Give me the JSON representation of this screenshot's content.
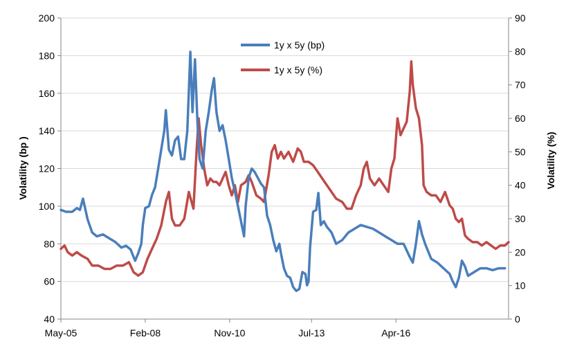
{
  "chart_data": {
    "type": "line",
    "legend_position": "top-center",
    "grid": "horizontal",
    "x_ticks": [
      "May-05",
      "Feb-08",
      "Nov-10",
      "Jul-13",
      "Apr-16"
    ],
    "x_range": [
      2005.33,
      2019.92
    ],
    "x_tick_positions": [
      2005.33,
      2008.08,
      2010.83,
      2013.5,
      2016.25
    ],
    "y_left": {
      "label": "Volatility  (bp )",
      "min": 40,
      "max": 200,
      "ticks": [
        40,
        60,
        80,
        100,
        120,
        140,
        160,
        180,
        200
      ]
    },
    "y_right": {
      "label": "Volatility  (%)",
      "min": 0,
      "max": 90,
      "ticks": [
        0,
        10,
        20,
        30,
        40,
        50,
        60,
        70,
        80,
        90
      ]
    },
    "series": [
      {
        "name": "1y x 5y (bp)",
        "color": "#4a7ebb",
        "axis": "left",
        "points": [
          [
            2005.33,
            98
          ],
          [
            2005.5,
            97
          ],
          [
            2005.7,
            97
          ],
          [
            2005.85,
            99
          ],
          [
            2005.95,
            98
          ],
          [
            2006.05,
            104
          ],
          [
            2006.2,
            93
          ],
          [
            2006.35,
            86
          ],
          [
            2006.5,
            84
          ],
          [
            2006.7,
            85
          ],
          [
            2006.9,
            83
          ],
          [
            2007.1,
            81
          ],
          [
            2007.3,
            78
          ],
          [
            2007.45,
            79
          ],
          [
            2007.6,
            77
          ],
          [
            2007.75,
            71
          ],
          [
            2007.85,
            75
          ],
          [
            2007.95,
            80
          ],
          [
            2008.0,
            90
          ],
          [
            2008.08,
            99
          ],
          [
            2008.2,
            100
          ],
          [
            2008.3,
            106
          ],
          [
            2008.4,
            110
          ],
          [
            2008.5,
            120
          ],
          [
            2008.6,
            130
          ],
          [
            2008.7,
            140
          ],
          [
            2008.75,
            151
          ],
          [
            2008.85,
            130
          ],
          [
            2008.95,
            127
          ],
          [
            2009.05,
            135
          ],
          [
            2009.15,
            137
          ],
          [
            2009.25,
            125
          ],
          [
            2009.35,
            125
          ],
          [
            2009.45,
            140
          ],
          [
            2009.55,
            182
          ],
          [
            2009.62,
            150
          ],
          [
            2009.7,
            178
          ],
          [
            2009.78,
            145
          ],
          [
            2009.85,
            125
          ],
          [
            2009.95,
            120
          ],
          [
            2010.05,
            140
          ],
          [
            2010.15,
            150
          ],
          [
            2010.25,
            162
          ],
          [
            2010.32,
            168
          ],
          [
            2010.4,
            150
          ],
          [
            2010.5,
            140
          ],
          [
            2010.6,
            143
          ],
          [
            2010.7,
            135
          ],
          [
            2010.8,
            125
          ],
          [
            2010.9,
            115
          ],
          [
            2011.0,
            108
          ],
          [
            2011.1,
            100
          ],
          [
            2011.2,
            92
          ],
          [
            2011.3,
            84
          ],
          [
            2011.35,
            100
          ],
          [
            2011.45,
            115
          ],
          [
            2011.55,
            120
          ],
          [
            2011.65,
            118
          ],
          [
            2011.75,
            115
          ],
          [
            2011.85,
            112
          ],
          [
            2011.95,
            110
          ],
          [
            2012.05,
            95
          ],
          [
            2012.15,
            90
          ],
          [
            2012.25,
            82
          ],
          [
            2012.35,
            76
          ],
          [
            2012.45,
            80
          ],
          [
            2012.5,
            75
          ],
          [
            2012.6,
            67
          ],
          [
            2012.7,
            63
          ],
          [
            2012.8,
            62
          ],
          [
            2012.9,
            57
          ],
          [
            2013.0,
            55
          ],
          [
            2013.1,
            56
          ],
          [
            2013.2,
            65
          ],
          [
            2013.3,
            64
          ],
          [
            2013.35,
            58
          ],
          [
            2013.4,
            60
          ],
          [
            2013.45,
            78
          ],
          [
            2013.55,
            97
          ],
          [
            2013.65,
            98
          ],
          [
            2013.72,
            107
          ],
          [
            2013.8,
            90
          ],
          [
            2013.9,
            92
          ],
          [
            2014.0,
            89
          ],
          [
            2014.15,
            86
          ],
          [
            2014.3,
            80
          ],
          [
            2014.5,
            82
          ],
          [
            2014.7,
            86
          ],
          [
            2014.9,
            88
          ],
          [
            2015.1,
            90
          ],
          [
            2015.3,
            89
          ],
          [
            2015.5,
            88
          ],
          [
            2015.7,
            86
          ],
          [
            2015.9,
            84
          ],
          [
            2016.1,
            82
          ],
          [
            2016.3,
            80
          ],
          [
            2016.5,
            80
          ],
          [
            2016.7,
            73
          ],
          [
            2016.8,
            70
          ],
          [
            2016.9,
            80
          ],
          [
            2017.0,
            92
          ],
          [
            2017.1,
            85
          ],
          [
            2017.2,
            80
          ],
          [
            2017.4,
            72
          ],
          [
            2017.6,
            70
          ],
          [
            2017.8,
            67
          ],
          [
            2018.0,
            64
          ],
          [
            2018.1,
            60
          ],
          [
            2018.2,
            57
          ],
          [
            2018.3,
            62
          ],
          [
            2018.4,
            71
          ],
          [
            2018.5,
            68
          ],
          [
            2018.6,
            63
          ],
          [
            2018.8,
            65
          ],
          [
            2019.0,
            67
          ],
          [
            2019.2,
            67
          ],
          [
            2019.4,
            66
          ],
          [
            2019.6,
            67
          ],
          [
            2019.8,
            67
          ]
        ]
      },
      {
        "name": "1y x 5y (%)",
        "color": "#be4b48",
        "axis": "right",
        "points": [
          [
            2005.33,
            21
          ],
          [
            2005.45,
            22
          ],
          [
            2005.55,
            20
          ],
          [
            2005.7,
            19
          ],
          [
            2005.85,
            20
          ],
          [
            2006.0,
            19
          ],
          [
            2006.2,
            18
          ],
          [
            2006.35,
            16
          ],
          [
            2006.55,
            16
          ],
          [
            2006.75,
            15
          ],
          [
            2006.95,
            15
          ],
          [
            2007.15,
            16
          ],
          [
            2007.35,
            16
          ],
          [
            2007.55,
            17
          ],
          [
            2007.7,
            14
          ],
          [
            2007.85,
            13
          ],
          [
            2008.0,
            14
          ],
          [
            2008.15,
            18
          ],
          [
            2008.3,
            21
          ],
          [
            2008.45,
            24
          ],
          [
            2008.6,
            28
          ],
          [
            2008.75,
            35
          ],
          [
            2008.85,
            38
          ],
          [
            2008.95,
            30
          ],
          [
            2009.05,
            28
          ],
          [
            2009.2,
            28
          ],
          [
            2009.35,
            30
          ],
          [
            2009.5,
            38
          ],
          [
            2009.65,
            33
          ],
          [
            2009.75,
            50
          ],
          [
            2009.82,
            60
          ],
          [
            2009.9,
            52
          ],
          [
            2010.0,
            45
          ],
          [
            2010.1,
            40
          ],
          [
            2010.2,
            42
          ],
          [
            2010.3,
            41
          ],
          [
            2010.4,
            41
          ],
          [
            2010.5,
            40
          ],
          [
            2010.6,
            42
          ],
          [
            2010.7,
            44
          ],
          [
            2010.8,
            40
          ],
          [
            2010.9,
            37
          ],
          [
            2011.0,
            40
          ],
          [
            2011.1,
            35
          ],
          [
            2011.2,
            40
          ],
          [
            2011.35,
            41
          ],
          [
            2011.45,
            43
          ],
          [
            2011.55,
            41
          ],
          [
            2011.7,
            37
          ],
          [
            2011.85,
            36
          ],
          [
            2011.95,
            35
          ],
          [
            2012.1,
            43
          ],
          [
            2012.2,
            50
          ],
          [
            2012.3,
            52
          ],
          [
            2012.4,
            48
          ],
          [
            2012.5,
            50
          ],
          [
            2012.6,
            48
          ],
          [
            2012.75,
            50
          ],
          [
            2012.9,
            47
          ],
          [
            2013.05,
            51
          ],
          [
            2013.15,
            50
          ],
          [
            2013.25,
            47
          ],
          [
            2013.4,
            47
          ],
          [
            2013.55,
            46
          ],
          [
            2013.7,
            44
          ],
          [
            2013.85,
            42
          ],
          [
            2014.0,
            40
          ],
          [
            2014.15,
            38
          ],
          [
            2014.3,
            36
          ],
          [
            2014.5,
            35
          ],
          [
            2014.65,
            33
          ],
          [
            2014.8,
            33
          ],
          [
            2014.95,
            37
          ],
          [
            2015.1,
            40
          ],
          [
            2015.2,
            45
          ],
          [
            2015.3,
            47
          ],
          [
            2015.4,
            42
          ],
          [
            2015.55,
            40
          ],
          [
            2015.7,
            42
          ],
          [
            2015.85,
            40
          ],
          [
            2016.0,
            38
          ],
          [
            2016.1,
            45
          ],
          [
            2016.2,
            48
          ],
          [
            2016.3,
            60
          ],
          [
            2016.4,
            55
          ],
          [
            2016.5,
            57
          ],
          [
            2016.6,
            59
          ],
          [
            2016.7,
            68
          ],
          [
            2016.75,
            77
          ],
          [
            2016.8,
            70
          ],
          [
            2016.9,
            63
          ],
          [
            2017.0,
            60
          ],
          [
            2017.1,
            52
          ],
          [
            2017.15,
            40
          ],
          [
            2017.25,
            38
          ],
          [
            2017.4,
            37
          ],
          [
            2017.55,
            37
          ],
          [
            2017.7,
            35
          ],
          [
            2017.85,
            38
          ],
          [
            2018.0,
            34
          ],
          [
            2018.1,
            33
          ],
          [
            2018.2,
            30
          ],
          [
            2018.3,
            29
          ],
          [
            2018.4,
            30
          ],
          [
            2018.5,
            25
          ],
          [
            2018.6,
            24
          ],
          [
            2018.75,
            23
          ],
          [
            2018.9,
            23
          ],
          [
            2019.05,
            22
          ],
          [
            2019.2,
            23
          ],
          [
            2019.35,
            22
          ],
          [
            2019.5,
            21
          ],
          [
            2019.65,
            22
          ],
          [
            2019.8,
            22
          ],
          [
            2019.92,
            23
          ]
        ]
      }
    ]
  }
}
